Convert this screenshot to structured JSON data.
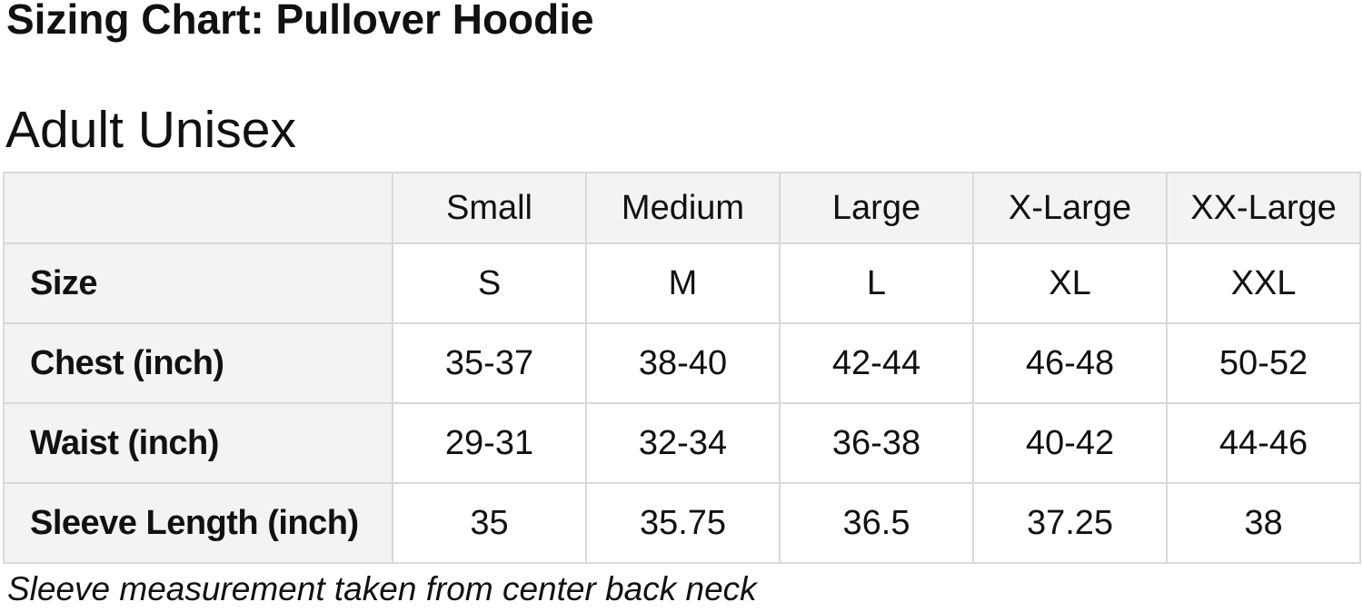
{
  "page": {
    "title": "Sizing Chart: Pullover Hoodie",
    "section_title": "Adult Unisex",
    "footnote": "Sleeve measurement taken from center back neck"
  },
  "colors": {
    "header_bg": "#f3f3f3",
    "cell_bg": "#ffffff",
    "border": "#d9d9d9",
    "text": "#111111"
  },
  "table": {
    "column_headers": [
      "",
      "Small",
      "Medium",
      "Large",
      "X-Large",
      "XX-Large"
    ],
    "rows": [
      {
        "label": "Size",
        "values": [
          "S",
          "M",
          "L",
          "XL",
          "XXL"
        ]
      },
      {
        "label": "Chest (inch)",
        "values": [
          "35-37",
          "38-40",
          "42-44",
          "46-48",
          "50-52"
        ]
      },
      {
        "label": "Waist (inch)",
        "values": [
          "29-31",
          "32-34",
          "36-38",
          "40-42",
          "44-46"
        ]
      },
      {
        "label": "Sleeve Length (inch)",
        "values": [
          "35",
          "35.75",
          "36.5",
          "37.25",
          "38"
        ]
      }
    ]
  }
}
